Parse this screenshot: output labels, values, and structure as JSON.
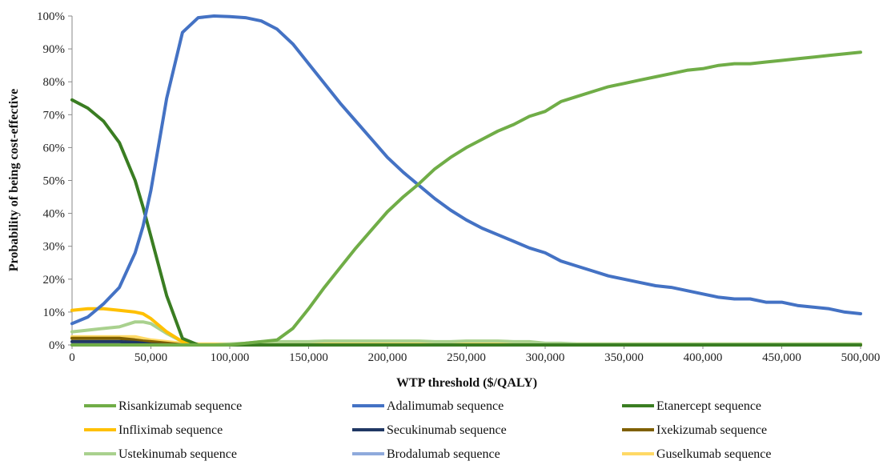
{
  "chart_data": {
    "type": "line",
    "xlabel": "WTP threshold ($/QALY)",
    "ylabel": "Probability of being cost-effective",
    "xlim": [
      0,
      500000
    ],
    "ylim": [
      0,
      100
    ],
    "x_ticks": [
      0,
      50000,
      100000,
      150000,
      200000,
      250000,
      300000,
      350000,
      400000,
      450000,
      500000
    ],
    "x_tick_labels": [
      "0",
      "50,000",
      "100,000",
      "150,000",
      "200,000",
      "250,000",
      "300,000",
      "350,000",
      "400,000",
      "450,000",
      "500,000"
    ],
    "y_ticks": [
      0,
      10,
      20,
      30,
      40,
      50,
      60,
      70,
      80,
      90,
      100
    ],
    "y_tick_labels": [
      "0%",
      "10%",
      "20%",
      "30%",
      "40%",
      "50%",
      "60%",
      "70%",
      "80%",
      "90%",
      "100%"
    ],
    "grid": false,
    "legend_position": "bottom",
    "x": [
      0,
      10000,
      20000,
      30000,
      40000,
      45000,
      50000,
      60000,
      70000,
      80000,
      90000,
      100000,
      110000,
      120000,
      130000,
      140000,
      150000,
      160000,
      170000,
      180000,
      190000,
      200000,
      210000,
      220000,
      230000,
      240000,
      250000,
      260000,
      270000,
      280000,
      290000,
      300000,
      310000,
      320000,
      330000,
      340000,
      350000,
      360000,
      370000,
      380000,
      390000,
      400000,
      410000,
      420000,
      430000,
      440000,
      450000,
      460000,
      470000,
      480000,
      490000,
      500000
    ],
    "series": [
      {
        "name": "Risankizumab sequence",
        "color": "#70ad47",
        "width": 4,
        "values": [
          0,
          0,
          0,
          0,
          0,
          0,
          0,
          0,
          0,
          0,
          0,
          0,
          0.5,
          1,
          1.5,
          5,
          11,
          17.5,
          23.5,
          29.5,
          35,
          40.5,
          45,
          49,
          53.5,
          57,
          60,
          62.5,
          65,
          67,
          69.5,
          71,
          74,
          75.5,
          77,
          78.5,
          79.5,
          80.5,
          81.5,
          82.5,
          83.5,
          84,
          85,
          85.5,
          85.5,
          86,
          86.5,
          87,
          87.5,
          88,
          88.5,
          89
        ]
      },
      {
        "name": "Adalimumab sequence",
        "color": "#4472c4",
        "width": 4,
        "values": [
          6.5,
          8.5,
          12.5,
          17.5,
          28,
          36,
          47,
          75,
          95,
          99.5,
          100,
          99.8,
          99.5,
          98.5,
          96,
          91.5,
          85.5,
          79.5,
          73.5,
          68,
          62.5,
          57,
          52.5,
          48.5,
          44.5,
          41,
          38,
          35.5,
          33.5,
          31.5,
          29.5,
          28,
          25.5,
          24,
          22.5,
          21,
          20,
          19,
          18,
          17.5,
          16.5,
          15.5,
          14.5,
          14,
          14,
          13,
          13,
          12,
          11.5,
          11,
          10,
          9.5
        ]
      },
      {
        "name": "Etanercept sequence",
        "color": "#3a7d22",
        "width": 4,
        "values": [
          74.5,
          72,
          68,
          61.5,
          50,
          42,
          33,
          15,
          2,
          0,
          0,
          0,
          0,
          0,
          0,
          0,
          0,
          0,
          0,
          0,
          0,
          0,
          0,
          0,
          0,
          0,
          0,
          0,
          0,
          0,
          0,
          0,
          0,
          0,
          0,
          0,
          0,
          0,
          0,
          0,
          0,
          0,
          0,
          0,
          0,
          0,
          0,
          0,
          0,
          0,
          0,
          0
        ]
      },
      {
        "name": "Infliximab sequence",
        "color": "#ffc000",
        "width": 4,
        "values": [
          10.5,
          11,
          11,
          10.5,
          10,
          9.5,
          8,
          4,
          1,
          0,
          0,
          0,
          0,
          0,
          0,
          0,
          0,
          0,
          0,
          0,
          0,
          0,
          0,
          0,
          0,
          0,
          0,
          0,
          0,
          0,
          0,
          0,
          0,
          0,
          0,
          0,
          0,
          0,
          0,
          0,
          0,
          0,
          0,
          0,
          0,
          0,
          0,
          0,
          0,
          0,
          0,
          0
        ]
      },
      {
        "name": "Secukinumab sequence",
        "color": "#203864",
        "width": 4,
        "values": [
          1,
          1,
          1,
          1,
          0.8,
          0.5,
          0.2,
          0,
          0,
          0,
          0,
          0,
          0,
          0,
          0,
          0,
          0,
          0,
          0,
          0,
          0,
          0,
          0,
          0,
          0,
          0,
          0,
          0,
          0,
          0,
          0,
          0,
          0,
          0,
          0,
          0,
          0,
          0,
          0,
          0,
          0,
          0,
          0,
          0,
          0,
          0,
          0,
          0,
          0,
          0,
          0,
          0
        ]
      },
      {
        "name": "Ixekizumab sequence",
        "color": "#7f6000",
        "width": 4,
        "values": [
          2,
          2,
          2,
          2,
          1.5,
          1.2,
          1,
          0.5,
          0,
          0,
          0,
          0,
          0,
          0,
          0,
          0,
          0,
          0,
          0,
          0,
          0,
          0,
          0,
          0,
          0,
          0,
          0,
          0,
          0,
          0,
          0,
          0,
          0,
          0,
          0,
          0,
          0,
          0,
          0,
          0,
          0,
          0,
          0,
          0,
          0,
          0,
          0,
          0,
          0,
          0,
          0,
          0
        ]
      },
      {
        "name": "Ustekinumab sequence",
        "color": "#a9d18e",
        "width": 4,
        "values": [
          4,
          4.5,
          5,
          5.5,
          7,
          7,
          6.5,
          3.5,
          1,
          0,
          0,
          0.3,
          0.5,
          1,
          1,
          1,
          1,
          1.2,
          1.2,
          1.2,
          1.2,
          1.2,
          1.2,
          1.2,
          1,
          1,
          1.2,
          1.2,
          1.2,
          1,
          1,
          0.5,
          0.5,
          0.3,
          0.3,
          0.3,
          0.3,
          0.3,
          0.3,
          0.3,
          0.3,
          0.3,
          0.3,
          0.3,
          0.3,
          0.3,
          0.3,
          0.3,
          0.3,
          0.3,
          0.3,
          0.3
        ]
      },
      {
        "name": "Brodalumab sequence",
        "color": "#8faadc",
        "width": 4,
        "values": [
          0,
          0,
          0,
          0,
          0,
          0,
          0,
          0,
          0,
          0,
          0,
          0,
          0,
          0,
          0,
          0,
          0,
          0,
          0,
          0,
          0,
          0,
          0,
          0,
          0,
          0,
          0,
          0,
          0,
          0,
          0,
          0,
          0,
          0,
          0,
          0,
          0,
          0,
          0,
          0,
          0,
          0,
          0,
          0,
          0,
          0,
          0,
          0,
          0,
          0,
          0,
          0
        ]
      },
      {
        "name": "Guselkumab sequence",
        "color": "#ffd966",
        "width": 4,
        "values": [
          2.5,
          2.5,
          2.5,
          2.5,
          2.5,
          2,
          1.5,
          1,
          0.5,
          0.3,
          0.3,
          0.3,
          0.3,
          0.3,
          0.3,
          0.3,
          0.3,
          0.3,
          0.3,
          0.3,
          0.3,
          0.3,
          0.3,
          0.3,
          0.3,
          0.3,
          0.3,
          0.3,
          0.3,
          0.3,
          0.3,
          0.3,
          0.3,
          0.3,
          0.3,
          0.3,
          0.3,
          0.3,
          0.3,
          0.3,
          0.3,
          0.3,
          0.3,
          0.3,
          0.3,
          0.3,
          0.3,
          0.3,
          0.3,
          0.3,
          0.3,
          0.3
        ]
      }
    ],
    "legend_order": [
      0,
      1,
      2,
      3,
      4,
      5,
      6,
      7,
      8
    ]
  }
}
